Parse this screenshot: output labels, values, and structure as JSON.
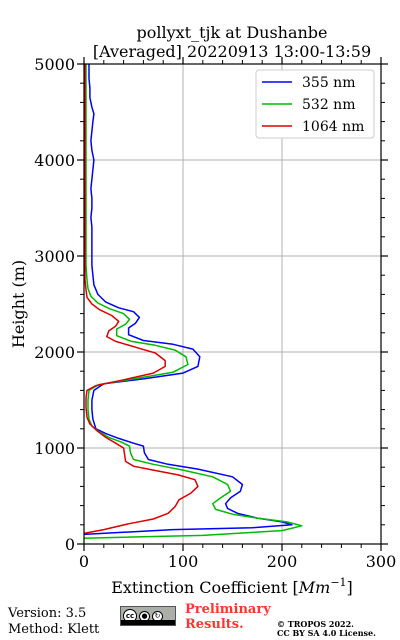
{
  "chart_data": {
    "type": "line",
    "title_line1": "pollyxt_tjk at Dushanbe",
    "title_line2": "[Averaged] 20220913 13:00-13:59",
    "xlabel": "Extinction Coefficient [",
    "xlabel_unit": "Mm",
    "xlabel_exp": "−1",
    "xlabel_end": "]",
    "ylabel": "Height (m)",
    "xlim": [
      0,
      300
    ],
    "ylim": [
      0,
      5000
    ],
    "x_ticks": [
      "0",
      "100",
      "200",
      "300"
    ],
    "y_ticks": [
      "0",
      "1000",
      "2000",
      "3000",
      "4000",
      "5000"
    ],
    "grid": true,
    "legend_position": "top-right",
    "series": [
      {
        "name": "355 nm",
        "color": "#0000ff",
        "points": [
          [
            0,
            100
          ],
          [
            90,
            150
          ],
          [
            170,
            170
          ],
          [
            210,
            200
          ],
          [
            200,
            230
          ],
          [
            175,
            270
          ],
          [
            155,
            320
          ],
          [
            145,
            370
          ],
          [
            143,
            420
          ],
          [
            148,
            480
          ],
          [
            158,
            550
          ],
          [
            160,
            620
          ],
          [
            150,
            700
          ],
          [
            115,
            780
          ],
          [
            85,
            830
          ],
          [
            65,
            880
          ],
          [
            61,
            950
          ],
          [
            60,
            1020
          ],
          [
            50,
            1050
          ],
          [
            35,
            1100
          ],
          [
            22,
            1150
          ],
          [
            12,
            1200
          ],
          [
            9,
            1300
          ],
          [
            8,
            1400
          ],
          [
            8,
            1500
          ],
          [
            10,
            1600
          ],
          [
            20,
            1670
          ],
          [
            60,
            1720
          ],
          [
            100,
            1780
          ],
          [
            115,
            1850
          ],
          [
            117,
            1950
          ],
          [
            110,
            2030
          ],
          [
            90,
            2080
          ],
          [
            60,
            2120
          ],
          [
            45,
            2180
          ],
          [
            45,
            2250
          ],
          [
            52,
            2300
          ],
          [
            56,
            2360
          ],
          [
            50,
            2420
          ],
          [
            35,
            2460
          ],
          [
            22,
            2520
          ],
          [
            14,
            2600
          ],
          [
            10,
            2700
          ],
          [
            9,
            2800
          ],
          [
            8,
            2900
          ],
          [
            8,
            3000
          ],
          [
            8,
            3100
          ],
          [
            8,
            3200
          ],
          [
            8,
            3300
          ],
          [
            7,
            3400
          ],
          [
            8,
            3500
          ],
          [
            8,
            3600
          ],
          [
            7,
            3700
          ],
          [
            8,
            3800
          ],
          [
            9,
            3900
          ],
          [
            10,
            4000
          ],
          [
            8,
            4100
          ],
          [
            7,
            4200
          ],
          [
            8,
            4300
          ],
          [
            9,
            4400
          ],
          [
            10,
            4480
          ],
          [
            8,
            4550
          ],
          [
            6,
            4650
          ],
          [
            6,
            4750
          ],
          [
            5,
            4850
          ],
          [
            5,
            4950
          ],
          [
            5,
            5000
          ]
        ]
      },
      {
        "name": "532 nm",
        "color": "#00bb00",
        "points": [
          [
            0,
            60
          ],
          [
            120,
            90
          ],
          [
            200,
            140
          ],
          [
            220,
            190
          ],
          [
            205,
            230
          ],
          [
            175,
            270
          ],
          [
            150,
            310
          ],
          [
            133,
            360
          ],
          [
            130,
            420
          ],
          [
            138,
            480
          ],
          [
            148,
            550
          ],
          [
            145,
            620
          ],
          [
            130,
            700
          ],
          [
            100,
            770
          ],
          [
            70,
            830
          ],
          [
            50,
            880
          ],
          [
            47,
            950
          ],
          [
            46,
            1020
          ],
          [
            38,
            1060
          ],
          [
            25,
            1110
          ],
          [
            15,
            1170
          ],
          [
            8,
            1230
          ],
          [
            5,
            1300
          ],
          [
            4,
            1400
          ],
          [
            4,
            1500
          ],
          [
            5,
            1600
          ],
          [
            15,
            1660
          ],
          [
            50,
            1720
          ],
          [
            90,
            1790
          ],
          [
            105,
            1870
          ],
          [
            103,
            1950
          ],
          [
            92,
            2020
          ],
          [
            72,
            2070
          ],
          [
            48,
            2110
          ],
          [
            33,
            2170
          ],
          [
            33,
            2240
          ],
          [
            42,
            2290
          ],
          [
            46,
            2340
          ],
          [
            40,
            2400
          ],
          [
            26,
            2450
          ],
          [
            14,
            2510
          ],
          [
            7,
            2580
          ],
          [
            4,
            2660
          ],
          [
            3,
            2750
          ],
          [
            2,
            2900
          ],
          [
            2,
            3100
          ],
          [
            2,
            3300
          ],
          [
            2,
            3500
          ],
          [
            2,
            3700
          ],
          [
            2,
            3900
          ],
          [
            2,
            4100
          ],
          [
            2,
            4300
          ],
          [
            2,
            4500
          ],
          [
            2,
            4700
          ],
          [
            2,
            4900
          ],
          [
            2,
            5000
          ]
        ]
      },
      {
        "name": "1064 nm",
        "color": "#dd0000",
        "points": [
          [
            0,
            110
          ],
          [
            20,
            150
          ],
          [
            45,
            210
          ],
          [
            70,
            260
          ],
          [
            85,
            320
          ],
          [
            92,
            390
          ],
          [
            96,
            460
          ],
          [
            108,
            530
          ],
          [
            115,
            600
          ],
          [
            112,
            670
          ],
          [
            95,
            720
          ],
          [
            70,
            770
          ],
          [
            50,
            810
          ],
          [
            42,
            860
          ],
          [
            41,
            930
          ],
          [
            40,
            1000
          ],
          [
            32,
            1050
          ],
          [
            22,
            1110
          ],
          [
            13,
            1180
          ],
          [
            6,
            1250
          ],
          [
            3,
            1320
          ],
          [
            2,
            1420
          ],
          [
            2,
            1520
          ],
          [
            3,
            1600
          ],
          [
            12,
            1650
          ],
          [
            40,
            1710
          ],
          [
            70,
            1780
          ],
          [
            82,
            1850
          ],
          [
            82,
            1910
          ],
          [
            72,
            1990
          ],
          [
            52,
            2050
          ],
          [
            32,
            2110
          ],
          [
            23,
            2160
          ],
          [
            25,
            2220
          ],
          [
            32,
            2270
          ],
          [
            35,
            2320
          ],
          [
            28,
            2380
          ],
          [
            16,
            2440
          ],
          [
            8,
            2500
          ],
          [
            3,
            2570
          ],
          [
            2,
            2650
          ],
          [
            1,
            2750
          ],
          [
            1,
            2900
          ],
          [
            1,
            3100
          ],
          [
            1,
            3300
          ],
          [
            1,
            3500
          ],
          [
            1,
            3700
          ],
          [
            1,
            3900
          ],
          [
            1,
            4100
          ],
          [
            1,
            4300
          ],
          [
            1,
            4500
          ],
          [
            1,
            4700
          ],
          [
            1,
            4900
          ],
          [
            1,
            5000
          ]
        ]
      }
    ]
  },
  "footer": {
    "version": "Version: 3.5",
    "method": "Method: Klett",
    "license_badge_text": "cc",
    "preliminary_line1": "Preliminary",
    "preliminary_line2": "Results.",
    "copyright_line1": "© TROPOS 2022.",
    "copyright_line2": "CC BY SA 4.0 License."
  }
}
